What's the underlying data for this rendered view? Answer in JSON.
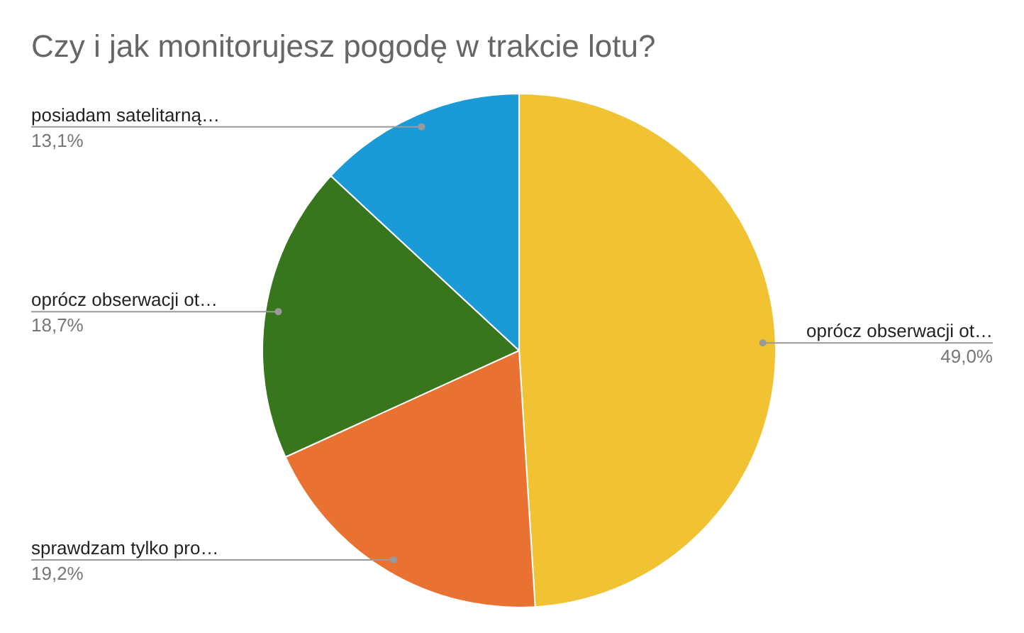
{
  "chart_data": {
    "type": "pie",
    "title": "Czy i jak monitorujesz pogodę w trakcie lotu?",
    "categories": [
      "oprócz obserwacji ot…",
      "sprawdzam tylko pro…",
      "oprócz obserwacji ot…",
      "posiadam satelitarną…"
    ],
    "values": [
      49.0,
      19.2,
      18.7,
      13.1
    ],
    "colors": [
      "#f1c232",
      "#e97132",
      "#38761d",
      "#1a9bd7"
    ],
    "value_labels": [
      "49,0%",
      "19,2%",
      "18,7%",
      "13,1%"
    ]
  }
}
